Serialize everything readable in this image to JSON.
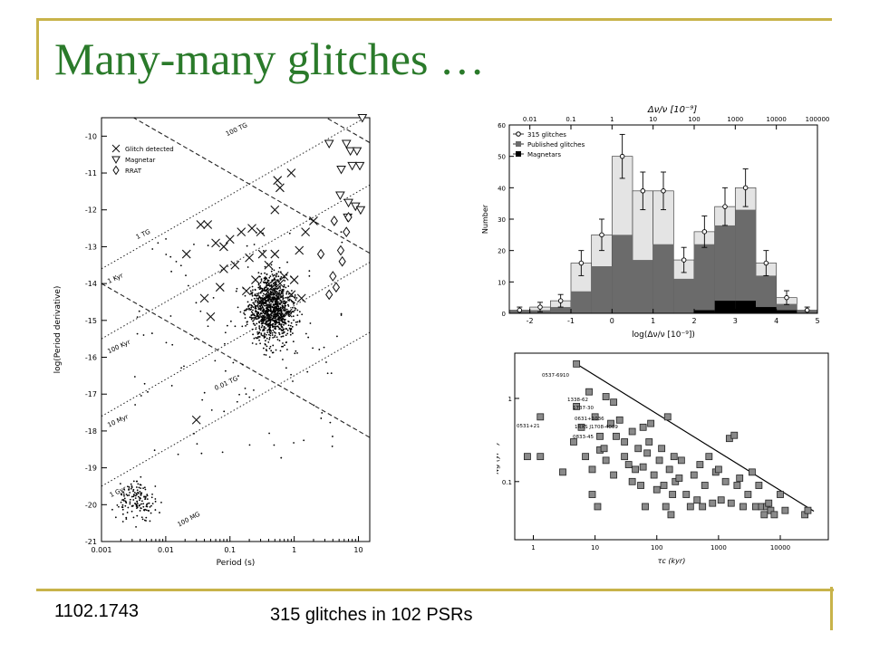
{
  "slide": {
    "title": "Many-many glitches …",
    "arxiv_id": "1102.1743",
    "caption": "315 glitches in 102 PSRs",
    "accent_color": "#2a7a2a",
    "rule_color": "#c8b34a"
  },
  "chart_data": [
    {
      "type": "scatter",
      "xlabel": "Period (s)",
      "ylabel": "log(Period derivative)",
      "x_scale": "log",
      "xlim": [
        0.001,
        15
      ],
      "ylim": [
        -21,
        -9.5
      ],
      "xtick_labels": [
        "0.001",
        "0.01",
        "0.1",
        "1",
        "10"
      ],
      "ytick_labels": [
        "-10",
        "-11",
        "-12",
        "-13",
        "-14",
        "-15",
        "-16",
        "-17",
        "-18",
        "-19",
        "-20",
        "-21"
      ],
      "legend": [
        "Glitch detected",
        "Magnetar",
        "RRAT"
      ],
      "legend_position": "top-left",
      "field_lines": [
        {
          "label": "100 TG",
          "kind": "B-field"
        },
        {
          "label": "1 TG",
          "kind": "B-field"
        },
        {
          "label": "0.01 TG",
          "kind": "B-field"
        },
        {
          "label": "100 MG",
          "kind": "B-field"
        },
        {
          "label": "1 Kyr",
          "kind": "age"
        },
        {
          "label": "100 Kyr",
          "kind": "age"
        },
        {
          "label": "10 Myr",
          "kind": "age"
        },
        {
          "label": "1 Gyr",
          "kind": "age"
        }
      ],
      "series": [
        {
          "name": "Glitch detected",
          "points": [
            [
              0.021,
              -13.2
            ],
            [
              0.035,
              -12.4
            ],
            [
              0.045,
              -12.4
            ],
            [
              0.06,
              -12.9
            ],
            [
              0.08,
              -13.0
            ],
            [
              0.1,
              -12.8
            ],
            [
              0.15,
              -12.6
            ],
            [
              0.22,
              -12.5
            ],
            [
              0.3,
              -12.6
            ],
            [
              0.5,
              -12.0
            ],
            [
              0.55,
              -11.2
            ],
            [
              0.6,
              -11.4
            ],
            [
              0.9,
              -11.0
            ],
            [
              0.08,
              -13.6
            ],
            [
              0.12,
              -13.5
            ],
            [
              0.2,
              -13.3
            ],
            [
              0.25,
              -13.9
            ],
            [
              0.32,
              -13.2
            ],
            [
              0.4,
              -13.5
            ],
            [
              0.5,
              -13.2
            ],
            [
              0.6,
              -14.0
            ],
            [
              0.3,
              -14.5
            ],
            [
              0.4,
              -14.9
            ],
            [
              0.6,
              -14.3
            ],
            [
              0.8,
              -14.8
            ],
            [
              1.0,
              -13.9
            ],
            [
              1.3,
              -14.4
            ],
            [
              0.45,
              -14.1
            ],
            [
              0.7,
              -13.8
            ],
            [
              0.9,
              -14.3
            ],
            [
              1.5,
              -12.6
            ],
            [
              2.0,
              -12.3
            ],
            [
              1.2,
              -13.1
            ],
            [
              0.04,
              -14.4
            ],
            [
              0.05,
              -14.9
            ],
            [
              0.03,
              -17.7
            ],
            [
              0.07,
              -14.1
            ],
            [
              0.18,
              -14.2
            ]
          ]
        },
        {
          "name": "Magnetar",
          "points": [
            [
              7.5,
              -10.4
            ],
            [
              8.0,
              -10.8
            ],
            [
              9.5,
              -10.4
            ],
            [
              10.5,
              -10.8
            ],
            [
              11.5,
              -9.5
            ],
            [
              6.5,
              -10.2
            ],
            [
              5.2,
              -11.6
            ],
            [
              7.0,
              -11.8
            ],
            [
              9.0,
              -11.9
            ],
            [
              10.8,
              -12.0
            ],
            [
              6.8,
              -12.2
            ],
            [
              5.4,
              -10.9
            ],
            [
              3.5,
              -10.2
            ]
          ]
        },
        {
          "name": "RRAT",
          "points": [
            [
              4.2,
              -12.3
            ],
            [
              5.3,
              -13.1
            ],
            [
              5.6,
              -13.4
            ],
            [
              6.5,
              -12.6
            ],
            [
              4.0,
              -13.8
            ],
            [
              3.5,
              -14.3
            ],
            [
              4.5,
              -14.1
            ],
            [
              7.0,
              -12.2
            ],
            [
              2.6,
              -13.2
            ]
          ]
        }
      ]
    },
    {
      "type": "bar",
      "title": "",
      "xlabel": "log(Δν/ν [10⁻⁹])",
      "top_xlabel": "Δν/ν [10⁻⁹]",
      "ylabel": "Number",
      "xlim": [
        -2.5,
        5
      ],
      "ylim": [
        0,
        60
      ],
      "xtick_labels": [
        "-2",
        "-1",
        "0",
        "1",
        "2",
        "3",
        "4",
        "5"
      ],
      "top_tick_labels": [
        "0.01",
        "0.1",
        "1",
        "10",
        "100",
        "1000",
        "10000",
        "100000"
      ],
      "ytick_labels": [
        "0",
        "10",
        "20",
        "30",
        "40",
        "50",
        "60"
      ],
      "bin_width": 0.5,
      "bin_starts": [
        -2.5,
        -2.0,
        -1.5,
        -1.0,
        -0.5,
        0.0,
        0.5,
        1.0,
        1.5,
        2.0,
        2.5,
        3.0,
        3.5,
        4.0,
        4.5
      ],
      "legend": [
        "315 glitches",
        "Published glitches",
        "Magnetars"
      ],
      "legend_position": "top-left",
      "series": [
        {
          "name": "315 glitches",
          "values": [
            1,
            2,
            4,
            16,
            25,
            50,
            39,
            39,
            17,
            26,
            34,
            40,
            16,
            5,
            1
          ],
          "errors": [
            1,
            1.5,
            2,
            4,
            5,
            7,
            6,
            6,
            4,
            5,
            6,
            6,
            4,
            2.2,
            1
          ]
        },
        {
          "name": "Published glitches",
          "values": [
            1,
            1,
            2,
            7,
            15,
            25,
            17,
            22,
            11,
            22,
            28,
            33,
            12,
            3,
            1
          ]
        },
        {
          "name": "Magnetars",
          "values": [
            0,
            0,
            0,
            0,
            0,
            0,
            0,
            0,
            0,
            1,
            4,
            4,
            2,
            1,
            0
          ]
        }
      ]
    },
    {
      "type": "scatter",
      "xlabel": "τc (kyr)",
      "ylabel": "Ṅg (yr⁻¹)",
      "x_scale": "log",
      "y_scale": "log",
      "xlim": [
        0.5,
        60000
      ],
      "ylim": [
        0.02,
        3.5
      ],
      "xtick_labels": [
        "1",
        "10",
        "100",
        "1000",
        "10000"
      ],
      "ytick_labels": [
        "1",
        "0.1"
      ],
      "fit_line": [
        [
          5,
          2.6
        ],
        [
          35000,
          0.044
        ]
      ],
      "annotations": [
        "0537-6910",
        "1338-62",
        "1737-30",
        "0531+21",
        "0631+1036",
        "1RXS J1708-4009",
        "0833-45"
      ],
      "points": [
        [
          5,
          2.6
        ],
        [
          5,
          0.8
        ],
        [
          8,
          1.2
        ],
        [
          15,
          1.05
        ],
        [
          20,
          0.9
        ],
        [
          1.3,
          0.6
        ],
        [
          4.5,
          0.3
        ],
        [
          0.8,
          0.2
        ],
        [
          1.3,
          0.2
        ],
        [
          3,
          0.13
        ],
        [
          6,
          0.45
        ],
        [
          10,
          0.6
        ],
        [
          12,
          0.35
        ],
        [
          18,
          0.5
        ],
        [
          25,
          0.55
        ],
        [
          30,
          0.3
        ],
        [
          40,
          0.4
        ],
        [
          60,
          0.45
        ],
        [
          80,
          0.5
        ],
        [
          150,
          0.6
        ],
        [
          7,
          0.2
        ],
        [
          9,
          0.14
        ],
        [
          12,
          0.24
        ],
        [
          15,
          0.18
        ],
        [
          20,
          0.12
        ],
        [
          30,
          0.2
        ],
        [
          40,
          0.1
        ],
        [
          50,
          0.25
        ],
        [
          60,
          0.15
        ],
        [
          70,
          0.22
        ],
        [
          90,
          0.12
        ],
        [
          110,
          0.18
        ],
        [
          130,
          0.09
        ],
        [
          160,
          0.14
        ],
        [
          200,
          0.1
        ],
        [
          250,
          0.18
        ],
        [
          300,
          0.07
        ],
        [
          400,
          0.12
        ],
        [
          500,
          0.16
        ],
        [
          600,
          0.09
        ],
        [
          700,
          0.2
        ],
        [
          900,
          0.13
        ],
        [
          1100,
          0.06
        ],
        [
          1300,
          0.1
        ],
        [
          1500,
          0.33
        ],
        [
          1800,
          0.36
        ],
        [
          2000,
          0.09
        ],
        [
          2500,
          0.05
        ],
        [
          3000,
          0.07
        ],
        [
          4000,
          0.05
        ],
        [
          5000,
          0.05
        ],
        [
          5500,
          0.04
        ],
        [
          6000,
          0.05
        ],
        [
          7000,
          0.045
        ],
        [
          8000,
          0.04
        ],
        [
          10000,
          0.07
        ],
        [
          12000,
          0.045
        ],
        [
          25000,
          0.04
        ],
        [
          28000,
          0.045
        ],
        [
          14,
          0.25
        ],
        [
          22,
          0.35
        ],
        [
          35,
          0.16
        ],
        [
          45,
          0.14
        ],
        [
          55,
          0.09
        ],
        [
          75,
          0.3
        ],
        [
          100,
          0.08
        ],
        [
          120,
          0.25
        ],
        [
          180,
          0.07
        ],
        [
          230,
          0.11
        ],
        [
          350,
          0.05
        ],
        [
          450,
          0.06
        ],
        [
          550,
          0.05
        ],
        [
          800,
          0.055
        ],
        [
          1000,
          0.14
        ],
        [
          1600,
          0.055
        ],
        [
          2200,
          0.11
        ],
        [
          3500,
          0.13
        ],
        [
          4500,
          0.09
        ],
        [
          6500,
          0.055
        ],
        [
          170,
          0.04
        ],
        [
          9,
          0.07
        ],
        [
          11,
          0.05
        ],
        [
          65,
          0.05
        ],
        [
          140,
          0.05
        ],
        [
          190,
          0.2
        ]
      ]
    }
  ]
}
